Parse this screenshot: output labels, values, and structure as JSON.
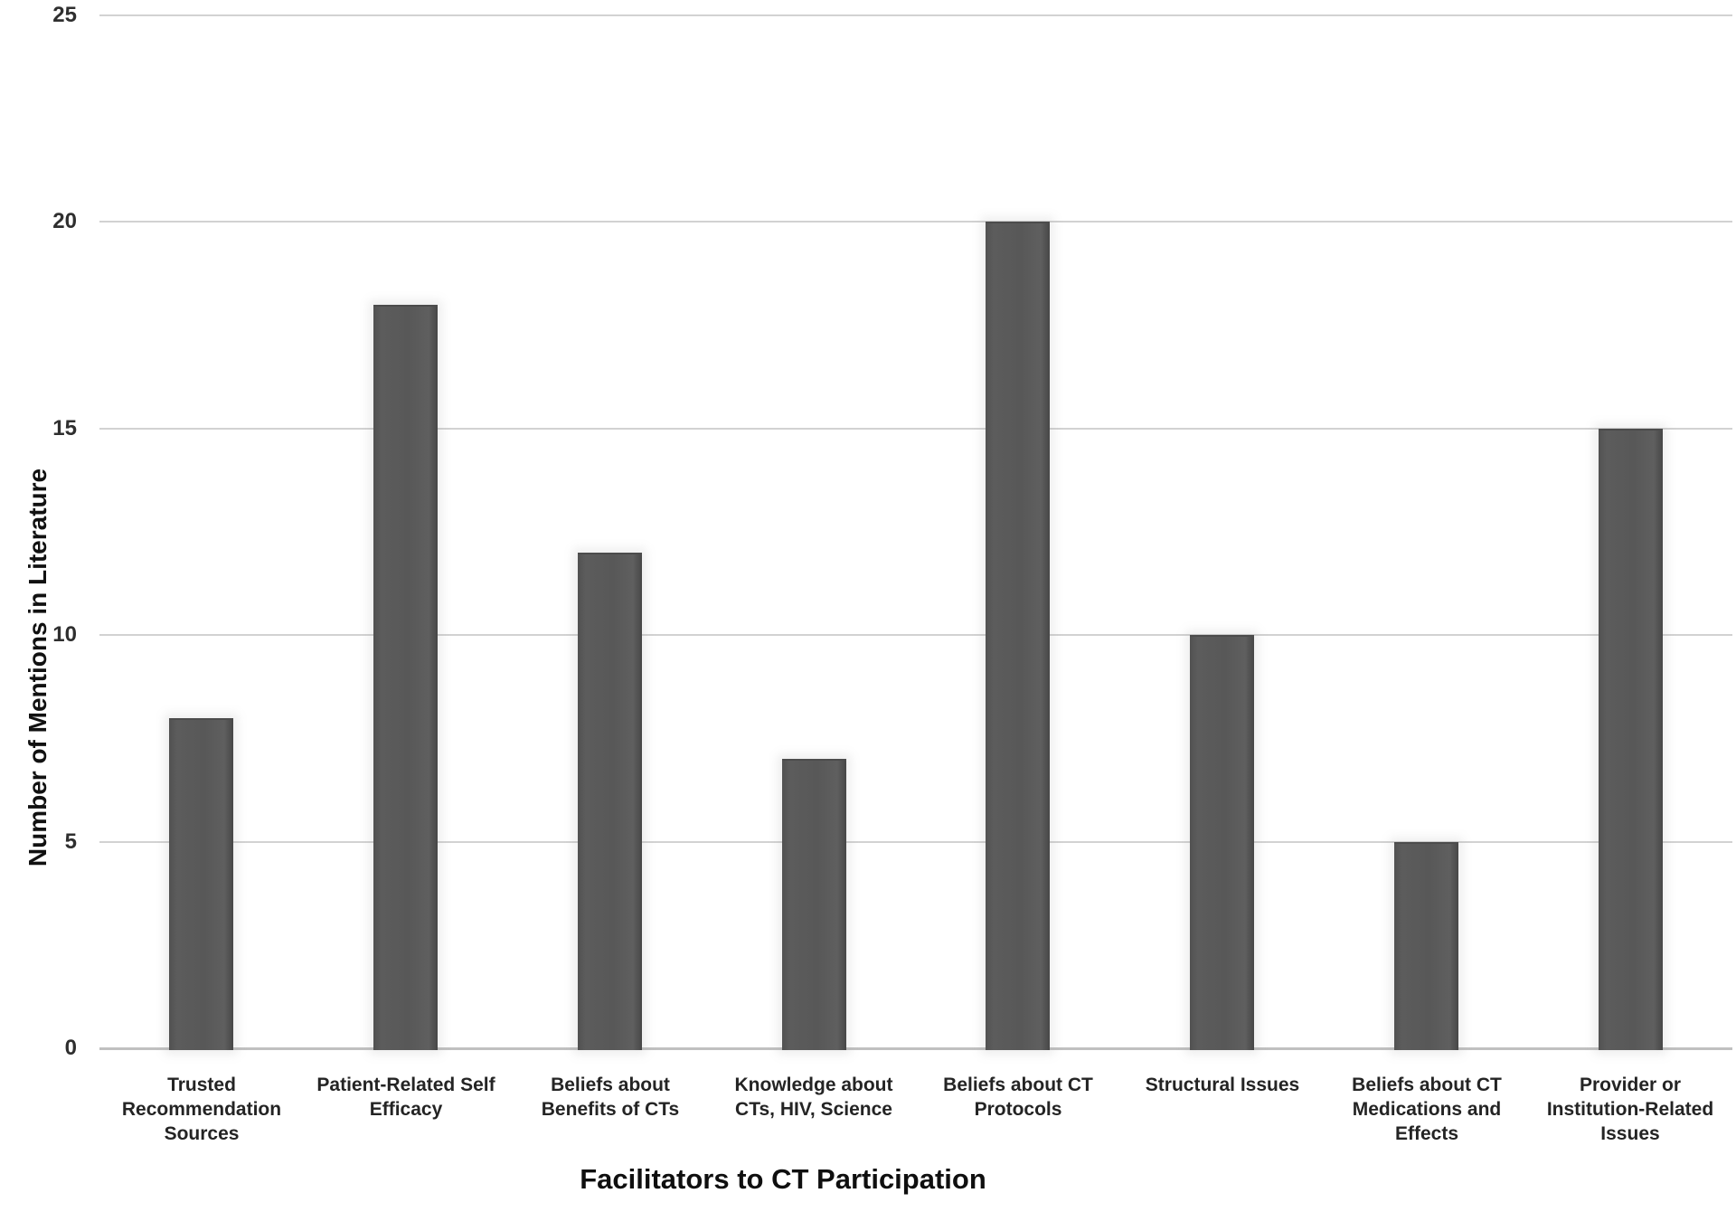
{
  "chart_data": {
    "type": "bar",
    "title": "",
    "xlabel": "Facilitators to CT Participation",
    "ylabel": "Number of Mentions in Literature",
    "categories": [
      "Trusted Recommendation Sources",
      "Patient-Related Self Efficacy",
      "Beliefs about Benefits of CTs",
      "Knowledge about CTs, HIV, Science",
      "Beliefs about CT Protocols",
      "Structural Issues",
      "Beliefs about CT Medications and Effects",
      "Provider or Institution-Related Issues"
    ],
    "values": [
      8,
      18,
      12,
      7,
      20,
      10,
      5,
      15
    ],
    "ylim": [
      0,
      25
    ],
    "yticks": [
      0,
      5,
      10,
      15,
      20,
      25
    ],
    "grid": "horizontal",
    "legend": "none",
    "bar_color": "#575757",
    "gridline_color": "#d2d2d2",
    "axis_line_color": "#c0c0c0",
    "text_color": "#242424"
  },
  "presentation": {
    "category_lines": [
      [
        "Trusted",
        "Recommendation",
        "Sources"
      ],
      [
        "Patient-Related Self",
        "Efficacy"
      ],
      [
        "Beliefs about",
        "Benefits of CTs"
      ],
      [
        "Knowledge about",
        "CTs, HIV, Science"
      ],
      [
        "Beliefs about CT",
        "Protocols"
      ],
      [
        "Structural Issues"
      ],
      [
        "Beliefs about CT",
        "Medications and",
        "Effects"
      ],
      [
        "Provider or",
        "Institution-Related",
        "Issues"
      ]
    ]
  }
}
